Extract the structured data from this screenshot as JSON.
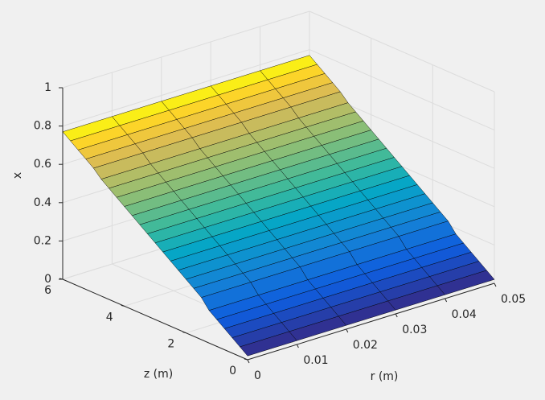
{
  "chart_data": {
    "type": "surface",
    "xlabel": "r (m)",
    "ylabel": "z (m)",
    "zlabel": "x",
    "r": [
      0,
      0.01,
      0.02,
      0.03,
      0.04,
      0.05
    ],
    "z": [
      0,
      0.25,
      0.5,
      0.75,
      1,
      1.25,
      1.5,
      1.75,
      2,
      2.25,
      2.5,
      2.75,
      3,
      3.25,
      3.5,
      3.75,
      4,
      4.25,
      4.5,
      4.75,
      5,
      5.25,
      5.5,
      5.75,
      6
    ],
    "values": [
      [
        0.02,
        0.02,
        0.02,
        0.02,
        0.02,
        0.02
      ],
      [
        0.05,
        0.05,
        0.05,
        0.05,
        0.05,
        0.05
      ],
      [
        0.08,
        0.08,
        0.08,
        0.08,
        0.08,
        0.08
      ],
      [
        0.11,
        0.11,
        0.11,
        0.11,
        0.11,
        0.11
      ],
      [
        0.14,
        0.14,
        0.14,
        0.14,
        0.14,
        0.14
      ],
      [
        0.17,
        0.17,
        0.17,
        0.17,
        0.17,
        0.17
      ],
      [
        0.22,
        0.22,
        0.22,
        0.22,
        0.22,
        0.22
      ],
      [
        0.25,
        0.25,
        0.25,
        0.25,
        0.25,
        0.25
      ],
      [
        0.28,
        0.28,
        0.28,
        0.28,
        0.28,
        0.28
      ],
      [
        0.31,
        0.31,
        0.31,
        0.31,
        0.31,
        0.31
      ],
      [
        0.34,
        0.34,
        0.34,
        0.34,
        0.34,
        0.34
      ],
      [
        0.37,
        0.37,
        0.37,
        0.37,
        0.37,
        0.37
      ],
      [
        0.4,
        0.4,
        0.4,
        0.4,
        0.4,
        0.4
      ],
      [
        0.43,
        0.43,
        0.43,
        0.43,
        0.43,
        0.43
      ],
      [
        0.46,
        0.46,
        0.46,
        0.46,
        0.46,
        0.46
      ],
      [
        0.49,
        0.49,
        0.49,
        0.49,
        0.49,
        0.49
      ],
      [
        0.52,
        0.52,
        0.52,
        0.52,
        0.52,
        0.52
      ],
      [
        0.55,
        0.55,
        0.55,
        0.55,
        0.55,
        0.55
      ],
      [
        0.58,
        0.58,
        0.58,
        0.58,
        0.58,
        0.58
      ],
      [
        0.61,
        0.61,
        0.61,
        0.61,
        0.61,
        0.61
      ],
      [
        0.65,
        0.65,
        0.65,
        0.65,
        0.65,
        0.65
      ],
      [
        0.68,
        0.68,
        0.68,
        0.68,
        0.68,
        0.68
      ],
      [
        0.71,
        0.71,
        0.71,
        0.71,
        0.71,
        0.71
      ],
      [
        0.74,
        0.74,
        0.74,
        0.74,
        0.74,
        0.74
      ],
      [
        0.77,
        0.77,
        0.77,
        0.77,
        0.77,
        0.77
      ]
    ],
    "xlim": [
      0,
      0.05
    ],
    "xticks": [
      0,
      0.01,
      0.02,
      0.03,
      0.04,
      0.05
    ],
    "ylim": [
      0,
      6
    ],
    "yticks": [
      0,
      2,
      4,
      6
    ],
    "zlim": [
      0,
      1
    ],
    "zticks": [
      0,
      0.2,
      0.4,
      0.6,
      0.8,
      1
    ],
    "grid": true,
    "colormap": "parula",
    "edgecolor": "#000000"
  }
}
